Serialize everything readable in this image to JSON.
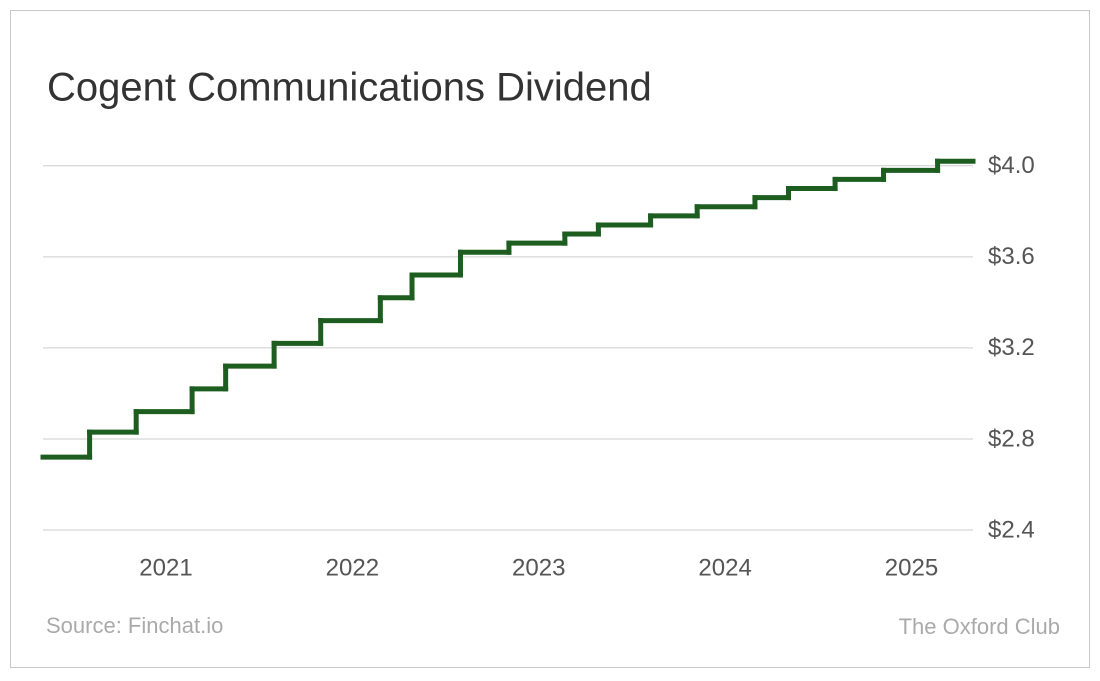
{
  "chart_data": {
    "type": "line",
    "step": "post",
    "title": "Cogent Communications Dividend",
    "source": "Source: Finchat.io",
    "brand": "The Oxford Club",
    "x": [
      2020.34,
      2020.59,
      2020.84,
      2021.14,
      2021.32,
      2021.58,
      2021.83,
      2022.15,
      2022.32,
      2022.58,
      2022.84,
      2023.14,
      2023.32,
      2023.6,
      2023.85,
      2024.16,
      2024.34,
      2024.59,
      2024.85,
      2025.14
    ],
    "values": [
      2.72,
      2.83,
      2.92,
      3.02,
      3.12,
      3.22,
      3.32,
      3.42,
      3.52,
      3.62,
      3.66,
      3.7,
      3.74,
      3.78,
      3.82,
      3.86,
      3.9,
      3.94,
      3.98,
      4.02
    ],
    "color": "#1d5e20",
    "xlim": [
      2020.34,
      2025.33
    ],
    "xticks": [
      2021,
      2022,
      2023,
      2024,
      2025
    ],
    "ylim": [
      2.4,
      4.1
    ],
    "yticks": [
      {
        "value": 2.4,
        "label": "$2.4"
      },
      {
        "value": 2.8,
        "label": "$2.8"
      },
      {
        "value": 3.2,
        "label": "$3.2"
      },
      {
        "value": 3.6,
        "label": "$3.6"
      },
      {
        "value": 4.0,
        "label": "$4.0"
      }
    ],
    "grid": true
  }
}
